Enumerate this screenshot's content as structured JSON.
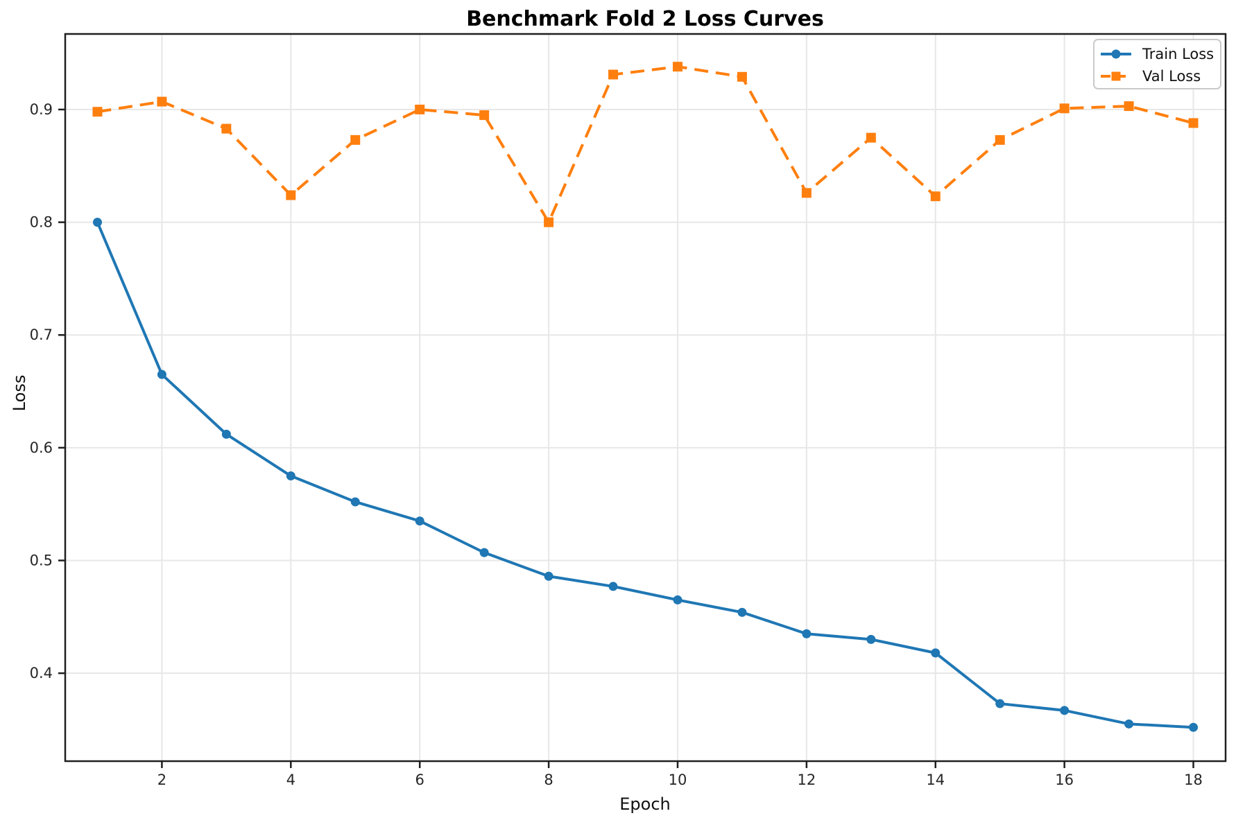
{
  "page": {
    "background": "#ffffff"
  },
  "chart_data": {
    "type": "line",
    "title": "Benchmark Fold 2 Loss Curves",
    "xlabel": "Epoch",
    "ylabel": "Loss",
    "x": [
      1,
      2,
      3,
      4,
      5,
      6,
      7,
      8,
      9,
      10,
      11,
      12,
      13,
      14,
      15,
      16,
      17,
      18
    ],
    "series": [
      {
        "name": "Train Loss",
        "color": "#1f77b4",
        "linestyle": "solid",
        "marker": "circle",
        "values": [
          0.8,
          0.665,
          0.612,
          0.575,
          0.552,
          0.535,
          0.507,
          0.486,
          0.477,
          0.465,
          0.454,
          0.435,
          0.43,
          0.418,
          0.373,
          0.367,
          0.355,
          0.352
        ]
      },
      {
        "name": "Val Loss",
        "color": "#ff7f0e",
        "linestyle": "dashed",
        "marker": "square",
        "values": [
          0.898,
          0.907,
          0.883,
          0.824,
          0.873,
          0.9,
          0.895,
          0.8,
          0.931,
          0.938,
          0.929,
          0.826,
          0.875,
          0.823,
          0.873,
          0.901,
          0.903,
          0.888
        ]
      }
    ],
    "x_ticks": [
      2,
      4,
      6,
      8,
      10,
      12,
      14,
      16,
      18
    ],
    "y_ticks": [
      0.4,
      0.5,
      0.6,
      0.7,
      0.8,
      0.9
    ],
    "xlim": [
      0.5,
      18.5
    ],
    "ylim": [
      0.322,
      0.967
    ],
    "grid": true,
    "legend": {
      "position": "upper right",
      "entries": [
        "Train Loss",
        "Val Loss"
      ]
    },
    "colors": {
      "grid": "#e7e7e7",
      "spine": "#1f1f1f",
      "legend_border": "#c9c9c9"
    }
  }
}
